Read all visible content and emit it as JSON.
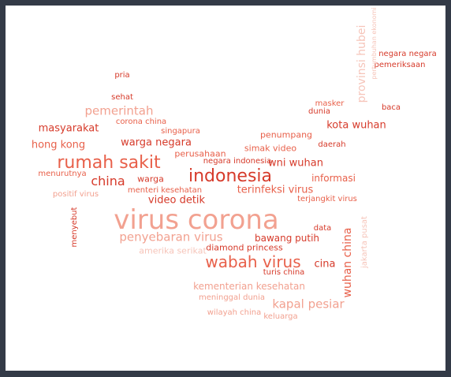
{
  "palette": {
    "dark": "#d63a2a",
    "mid": "#e8604a",
    "light": "#f2a190",
    "pale": "#f6c4b9"
  },
  "words": [
    {
      "text": "virus corona",
      "tone": "light"
    },
    {
      "text": "indonesia",
      "tone": "dark"
    },
    {
      "text": "rumah sakit",
      "tone": "mid"
    },
    {
      "text": "wabah virus",
      "tone": "mid"
    },
    {
      "text": "penyebaran virus",
      "tone": "light"
    },
    {
      "text": "pemerintah",
      "tone": "light"
    },
    {
      "text": "china",
      "tone": "dark"
    },
    {
      "text": "kapal pesiar",
      "tone": "light"
    },
    {
      "text": "wuhan china",
      "tone": "mid"
    },
    {
      "text": "provinsi hubei",
      "tone": "pale"
    },
    {
      "text": "terinfeksi virus",
      "tone": "mid"
    },
    {
      "text": "kota wuhan",
      "tone": "dark"
    },
    {
      "text": "hong kong",
      "tone": "mid"
    },
    {
      "text": "warga negara",
      "tone": "dark"
    },
    {
      "text": "masyarakat",
      "tone": "dark"
    },
    {
      "text": "wni wuhan",
      "tone": "dark"
    },
    {
      "text": "video detik",
      "tone": "dark"
    },
    {
      "text": "kementerian kesehatan",
      "tone": "light"
    },
    {
      "text": "cina",
      "tone": "dark"
    },
    {
      "text": "informasi",
      "tone": "mid"
    },
    {
      "text": "bawang putih",
      "tone": "dark"
    },
    {
      "text": "diamond princess",
      "tone": "dark"
    },
    {
      "text": "penumpang",
      "tone": "mid"
    },
    {
      "text": "simak video",
      "tone": "mid"
    },
    {
      "text": "perusahaan",
      "tone": "mid"
    },
    {
      "text": "negara indonesia",
      "tone": "dark"
    },
    {
      "text": "warga",
      "tone": "dark"
    },
    {
      "text": "menteri kesehatan",
      "tone": "mid"
    },
    {
      "text": "positif virus",
      "tone": "light"
    },
    {
      "text": "menurutnya",
      "tone": "mid"
    },
    {
      "text": "terjangkit virus",
      "tone": "mid"
    },
    {
      "text": "menyebut",
      "tone": "dark"
    },
    {
      "text": "amerika serikat",
      "tone": "pale"
    },
    {
      "text": "turis china",
      "tone": "dark"
    },
    {
      "text": "meninggal dunia",
      "tone": "light"
    },
    {
      "text": "wilayah china",
      "tone": "light"
    },
    {
      "text": "keluarga",
      "tone": "light"
    },
    {
      "text": "data",
      "tone": "dark"
    },
    {
      "text": "jakarta pusat",
      "tone": "pale"
    },
    {
      "text": "daerah",
      "tone": "dark"
    },
    {
      "text": "masker",
      "tone": "mid"
    },
    {
      "text": "dunia",
      "tone": "dark"
    },
    {
      "text": "baca",
      "tone": "dark"
    },
    {
      "text": "negara negara",
      "tone": "dark"
    },
    {
      "text": "pemeriksaan",
      "tone": "dark"
    },
    {
      "text": "pertumbuhan ekonomi",
      "tone": "pale"
    },
    {
      "text": "pria",
      "tone": "dark"
    },
    {
      "text": "sehat",
      "tone": "dark"
    },
    {
      "text": "corona china",
      "tone": "mid"
    },
    {
      "text": "singapura",
      "tone": "mid"
    }
  ]
}
